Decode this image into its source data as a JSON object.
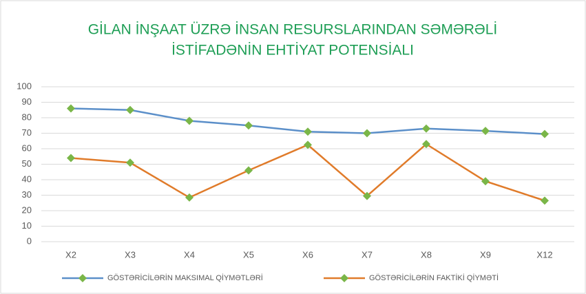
{
  "chart_data": {
    "type": "line",
    "title": [
      "GİLAN İNŞAAT ÜZRƏ İNSAN RESURSLARINDAN SƏMƏRƏLİ",
      "İSTİFADƏNİN EHTİYAT POTENSİALI"
    ],
    "categories": [
      "X2",
      "X3",
      "X4",
      "X5",
      "X6",
      "X7",
      "X8",
      "X9",
      "X12"
    ],
    "series": [
      {
        "name": "GÖSTƏRİCİLƏRİN MAKSIMAL QİYMƏTLƏRİ",
        "color": "#5b8fc9",
        "values": [
          86,
          85,
          78,
          75,
          71,
          70,
          73,
          71.5,
          69.5
        ]
      },
      {
        "name": "GÖSTƏRİCİLƏRİN FAKTİKİ QİYMƏTİ",
        "color": "#e07b2a",
        "values": [
          54,
          51,
          28.5,
          46,
          62.5,
          29.5,
          63,
          39,
          26.5
        ]
      }
    ],
    "marker_color": "#7ab648",
    "ylim": [
      0,
      100
    ],
    "yticks": [
      0,
      10,
      20,
      30,
      40,
      50,
      60,
      70,
      80,
      90,
      100
    ],
    "grid": true,
    "legend": "bottom"
  }
}
